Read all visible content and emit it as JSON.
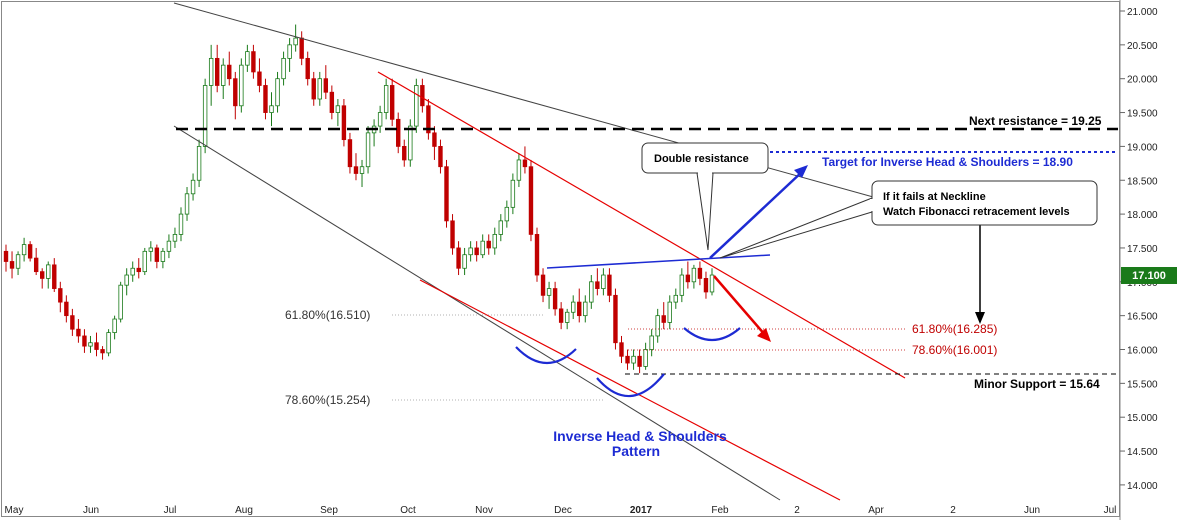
{
  "chart_data": {
    "type": "candlestick",
    "x_tick_labels": [
      "May",
      "Jun",
      "Jul",
      "Aug",
      "Sep",
      "Oct",
      "Nov",
      "Dec",
      "2017",
      "Feb",
      "2",
      "Apr",
      "2",
      "Jun",
      "Jul"
    ],
    "y_tick_labels": [
      "21.000",
      "20.500",
      "20.000",
      "19.500",
      "19.000",
      "18.500",
      "18.000",
      "17.500",
      "17.000",
      "16.500",
      "16.000",
      "15.500",
      "15.000",
      "14.500",
      "14.000"
    ],
    "ylim": [
      13.9,
      21.1
    ],
    "last_price": "17.100",
    "levels": {
      "next_resistance": 19.25,
      "target": 18.9,
      "minor_support": 15.64,
      "fib_61_8_left": 16.51,
      "fib_78_6_left": 15.254,
      "fib_61_8_right": 16.285,
      "fib_78_6_right": 16.001
    },
    "annotations": {
      "next_resistance": "Next resistance = 19.25",
      "target": "Target for Inverse Head & Shoulders = 18.90",
      "minor_support": "Minor Support = 15.64",
      "fib_61_left": "61.80%(16.510)",
      "fib_78_left": "78.60%(15.254)",
      "fib_61_right": "61.80%(16.285)",
      "fib_78_right": "78.60%(16.001)",
      "double_resistance": "Double resistance",
      "fails_line1": "If it fails at Neckline",
      "fails_line2": "Watch Fibonacci retracement levels",
      "pattern_line1": "Inverse Head & Shoulders",
      "pattern_line2": "Pattern"
    },
    "ohlc": [
      [
        17.45,
        17.55,
        17.15,
        17.3
      ],
      [
        17.3,
        17.45,
        17.05,
        17.2
      ],
      [
        17.2,
        17.45,
        17.1,
        17.4
      ],
      [
        17.4,
        17.65,
        17.3,
        17.55
      ],
      [
        17.55,
        17.6,
        17.3,
        17.35
      ],
      [
        17.35,
        17.5,
        17.1,
        17.15
      ],
      [
        17.15,
        17.2,
        16.9,
        17.05
      ],
      [
        17.05,
        17.3,
        16.9,
        17.25
      ],
      [
        17.25,
        17.35,
        16.85,
        16.9
      ],
      [
        16.9,
        17.0,
        16.55,
        16.7
      ],
      [
        16.7,
        16.8,
        16.4,
        16.5
      ],
      [
        16.5,
        16.6,
        16.2,
        16.3
      ],
      [
        16.3,
        16.45,
        16.1,
        16.2
      ],
      [
        16.2,
        16.3,
        15.95,
        16.05
      ],
      [
        16.05,
        16.2,
        15.95,
        16.1
      ],
      [
        16.1,
        16.25,
        15.9,
        16.0
      ],
      [
        16.0,
        16.05,
        15.85,
        15.95
      ],
      [
        15.95,
        16.3,
        15.9,
        16.25
      ],
      [
        16.25,
        16.5,
        16.15,
        16.45
      ],
      [
        16.45,
        17.0,
        16.4,
        16.95
      ],
      [
        16.95,
        17.2,
        16.8,
        17.1
      ],
      [
        17.1,
        17.3,
        17.0,
        17.2
      ],
      [
        17.2,
        17.35,
        17.05,
        17.15
      ],
      [
        17.15,
        17.5,
        17.1,
        17.45
      ],
      [
        17.45,
        17.6,
        17.3,
        17.5
      ],
      [
        17.5,
        17.55,
        17.2,
        17.3
      ],
      [
        17.3,
        17.5,
        17.2,
        17.45
      ],
      [
        17.45,
        17.7,
        17.35,
        17.6
      ],
      [
        17.6,
        17.8,
        17.5,
        17.7
      ],
      [
        17.7,
        18.1,
        17.6,
        18.0
      ],
      [
        18.0,
        18.4,
        17.9,
        18.3
      ],
      [
        18.3,
        18.6,
        18.2,
        18.5
      ],
      [
        18.5,
        19.1,
        18.4,
        19.0
      ],
      [
        19.0,
        20.0,
        18.9,
        19.9
      ],
      [
        19.9,
        20.5,
        19.6,
        20.3
      ],
      [
        20.3,
        20.5,
        19.8,
        19.9
      ],
      [
        19.9,
        20.3,
        19.7,
        20.2
      ],
      [
        20.2,
        20.4,
        19.9,
        20.0
      ],
      [
        20.0,
        20.1,
        19.4,
        19.6
      ],
      [
        19.6,
        20.3,
        19.5,
        20.2
      ],
      [
        20.2,
        20.5,
        20.1,
        20.4
      ],
      [
        20.4,
        20.5,
        20.0,
        20.1
      ],
      [
        20.1,
        20.3,
        19.8,
        19.9
      ],
      [
        19.9,
        20.0,
        19.4,
        19.5
      ],
      [
        19.5,
        19.8,
        19.3,
        19.6
      ],
      [
        19.6,
        20.1,
        19.5,
        20.0
      ],
      [
        20.0,
        20.4,
        19.9,
        20.3
      ],
      [
        20.3,
        20.6,
        20.1,
        20.5
      ],
      [
        20.5,
        20.8,
        20.4,
        20.6
      ],
      [
        20.6,
        20.7,
        20.2,
        20.3
      ],
      [
        20.3,
        20.4,
        19.9,
        20.0
      ],
      [
        20.0,
        20.1,
        19.6,
        19.7
      ],
      [
        19.7,
        20.1,
        19.6,
        20.0
      ],
      [
        20.0,
        20.2,
        19.7,
        19.8
      ],
      [
        19.8,
        19.9,
        19.4,
        19.5
      ],
      [
        19.5,
        19.7,
        19.3,
        19.6
      ],
      [
        19.6,
        19.7,
        19.0,
        19.1
      ],
      [
        19.1,
        19.2,
        18.6,
        18.7
      ],
      [
        18.7,
        18.9,
        18.5,
        18.6
      ],
      [
        18.6,
        18.8,
        18.4,
        18.7
      ],
      [
        18.7,
        19.3,
        18.6,
        19.2
      ],
      [
        19.2,
        19.4,
        19.0,
        19.3
      ],
      [
        19.3,
        19.6,
        19.2,
        19.5
      ],
      [
        19.5,
        20.0,
        19.4,
        19.9
      ],
      [
        19.9,
        20.0,
        19.3,
        19.4
      ],
      [
        19.4,
        19.5,
        18.9,
        19.0
      ],
      [
        19.0,
        19.1,
        18.7,
        18.8
      ],
      [
        18.8,
        19.4,
        18.7,
        19.3
      ],
      [
        19.3,
        20.0,
        19.2,
        19.9
      ],
      [
        19.9,
        20.0,
        19.5,
        19.6
      ],
      [
        19.6,
        19.7,
        19.1,
        19.2
      ],
      [
        19.2,
        19.3,
        18.8,
        19.0
      ],
      [
        19.0,
        19.1,
        18.6,
        18.7
      ],
      [
        18.7,
        18.8,
        17.8,
        17.9
      ],
      [
        17.9,
        18.0,
        17.4,
        17.5
      ],
      [
        17.5,
        17.6,
        17.1,
        17.2
      ],
      [
        17.2,
        17.5,
        17.1,
        17.4
      ],
      [
        17.4,
        17.6,
        17.3,
        17.5
      ],
      [
        17.5,
        17.6,
        17.3,
        17.4
      ],
      [
        17.4,
        17.7,
        17.35,
        17.6
      ],
      [
        17.6,
        17.7,
        17.4,
        17.5
      ],
      [
        17.5,
        17.8,
        17.4,
        17.7
      ],
      [
        17.7,
        18.0,
        17.6,
        17.9
      ],
      [
        17.9,
        18.2,
        17.8,
        18.1
      ],
      [
        18.1,
        18.6,
        18.0,
        18.5
      ],
      [
        18.5,
        18.9,
        18.4,
        18.8
      ],
      [
        18.8,
        19.0,
        18.6,
        18.7
      ],
      [
        18.7,
        18.8,
        17.6,
        17.7
      ],
      [
        17.7,
        17.8,
        17.0,
        17.1
      ],
      [
        17.1,
        17.2,
        16.7,
        16.8
      ],
      [
        16.8,
        17.0,
        16.6,
        16.9
      ],
      [
        16.9,
        17.0,
        16.5,
        16.6
      ],
      [
        16.6,
        16.7,
        16.3,
        16.4
      ],
      [
        16.4,
        16.6,
        16.3,
        16.55
      ],
      [
        16.55,
        16.8,
        16.45,
        16.7
      ],
      [
        16.7,
        16.9,
        16.4,
        16.5
      ],
      [
        16.5,
        16.8,
        16.4,
        16.7
      ],
      [
        16.7,
        17.1,
        16.6,
        17.0
      ],
      [
        17.0,
        17.2,
        16.8,
        16.9
      ],
      [
        16.9,
        17.2,
        16.8,
        17.1
      ],
      [
        17.1,
        17.2,
        16.7,
        16.8
      ],
      [
        16.8,
        16.9,
        16.0,
        16.1
      ],
      [
        16.1,
        16.2,
        15.8,
        15.9
      ],
      [
        15.9,
        16.0,
        15.7,
        15.8
      ],
      [
        15.8,
        16.0,
        15.7,
        15.9
      ],
      [
        15.9,
        16.0,
        15.65,
        15.75
      ],
      [
        15.75,
        16.1,
        15.7,
        16.0
      ],
      [
        16.0,
        16.3,
        15.9,
        16.2
      ],
      [
        16.2,
        16.6,
        16.1,
        16.5
      ],
      [
        16.5,
        16.7,
        16.3,
        16.4
      ],
      [
        16.4,
        16.8,
        16.3,
        16.7
      ],
      [
        16.7,
        16.9,
        16.6,
        16.8
      ],
      [
        16.8,
        17.2,
        16.7,
        17.1
      ],
      [
        17.1,
        17.3,
        16.9,
        17.0
      ],
      [
        17.0,
        17.25,
        16.9,
        17.2
      ],
      [
        17.2,
        17.3,
        16.95,
        17.05
      ],
      [
        17.05,
        17.15,
        16.75,
        16.85
      ],
      [
        16.85,
        17.2,
        16.8,
        17.1
      ]
    ]
  },
  "colors": {
    "bull": "#1a7a1a",
    "bear": "#c00000",
    "red_trend": "#e60000",
    "blue_pattern": "#1d2bd3",
    "dark": "#000000",
    "price_badge": "#1a7a1a"
  }
}
